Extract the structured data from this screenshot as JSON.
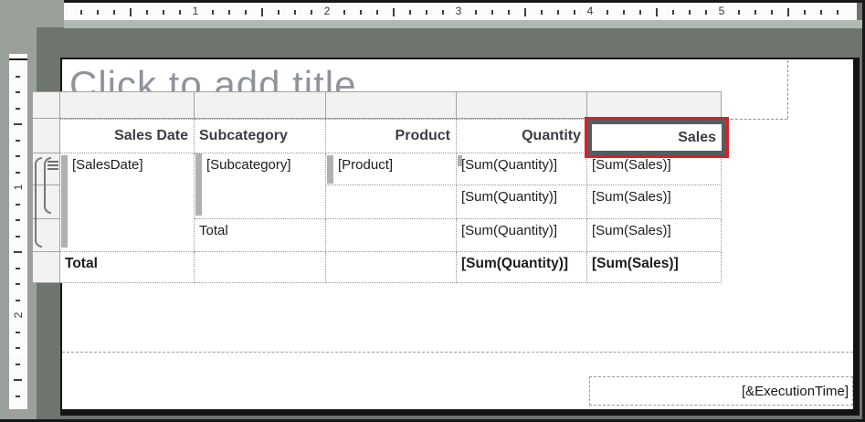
{
  "rulers": {
    "horizontal_numbers": [
      "1",
      "2",
      "3",
      "4",
      "5"
    ],
    "vertical_numbers": [
      "1",
      "2"
    ]
  },
  "design_surface": {
    "title_placeholder": "Click to add title",
    "execution_time": "[&ExecutionTime]"
  },
  "tablix": {
    "headers": {
      "sales_date": "Sales Date",
      "subcategory": "Subcategory",
      "product": "Product",
      "quantity": "Quantity",
      "sales": "Sales"
    },
    "details_row": {
      "sales_date": "[SalesDate]",
      "subcategory": "[Subcategory]",
      "product": "[Product]",
      "quantity": "[Sum(Quantity)]",
      "sales": "[Sum(Sales)]"
    },
    "product_total_row": {
      "quantity": "[Sum(Quantity)]",
      "sales": "[Sum(Sales)]"
    },
    "subcategory_total_row": {
      "label": "Total",
      "quantity": "[Sum(Quantity)]",
      "sales": "[Sum(Sales)]"
    },
    "grand_total_row": {
      "label": "Total",
      "quantity": "[Sum(Quantity)]",
      "sales": "[Sum(Sales)]"
    }
  },
  "highlight": {
    "color": "#da1f26"
  }
}
